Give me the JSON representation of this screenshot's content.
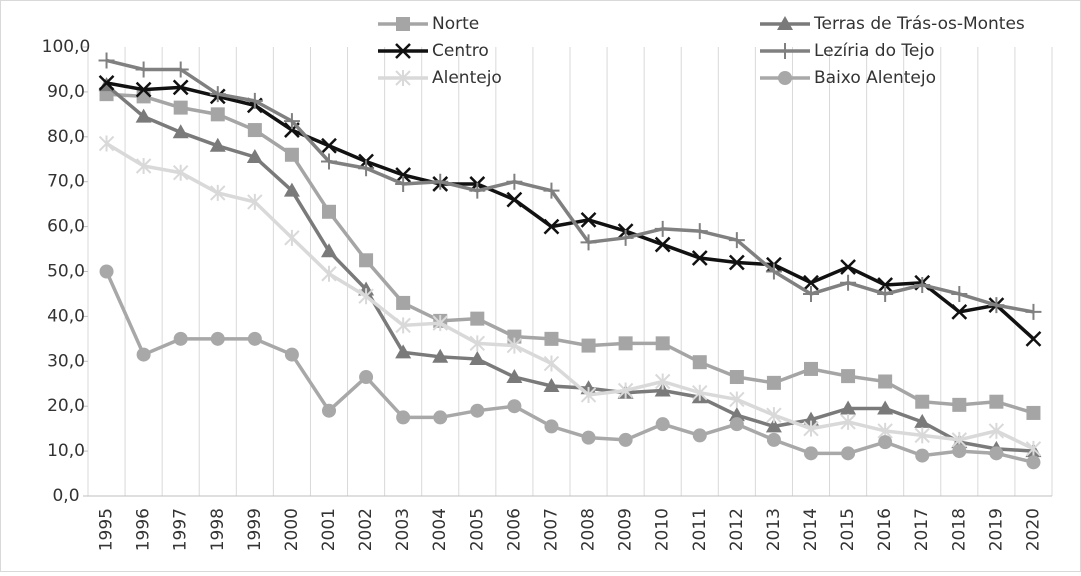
{
  "chart_data": {
    "type": "line",
    "categories": [
      "1995",
      "1996",
      "1997",
      "1998",
      "1999",
      "2000",
      "2001",
      "2002",
      "2003",
      "2004",
      "2005",
      "2006",
      "2007",
      "2008",
      "2009",
      "2010",
      "2011",
      "2012",
      "2013",
      "2014",
      "2015",
      "2016",
      "2017",
      "2018",
      "2019",
      "2020"
    ],
    "series": [
      {
        "name": "Norte",
        "color": "#a5a5a5",
        "marker": "square",
        "values": [
          89.5,
          89,
          86.5,
          85,
          81.5,
          76,
          63.3,
          52.5,
          43,
          39,
          39.5,
          35.5,
          35,
          33.5,
          34,
          34,
          29.8,
          26.5,
          25.2,
          28.3,
          26.7,
          25.5,
          21,
          20.3,
          21,
          18.5
        ]
      },
      {
        "name": "Terras de Trás-os-Montes",
        "color": "#7a7a7a",
        "marker": "triangle",
        "values": [
          91.5,
          84.5,
          81,
          78,
          75.5,
          68,
          54.5,
          46,
          32,
          31,
          30.5,
          26.5,
          24.5,
          24,
          23,
          23.5,
          22,
          18,
          15.5,
          17,
          19.5,
          19.5,
          16.5,
          12,
          10.5,
          10
        ]
      },
      {
        "name": "Centro",
        "color": "#111111",
        "marker": "x",
        "values": [
          92,
          90.5,
          91,
          89,
          87,
          81.5,
          78,
          74.5,
          71.5,
          69.5,
          69.5,
          66,
          60,
          61.5,
          59,
          56,
          53,
          52,
          51.5,
          47.5,
          51,
          47,
          47.5,
          41,
          42.5,
          35
        ]
      },
      {
        "name": "Lezíria do Tejo",
        "color": "#808080",
        "marker": "plus",
        "values": [
          97,
          95,
          95,
          89.5,
          88,
          83.5,
          74.5,
          73,
          69.5,
          70,
          68,
          70,
          68,
          56.5,
          57.5,
          59.5,
          59,
          57,
          50,
          45,
          47.5,
          45,
          47,
          45,
          42.5,
          41
        ]
      },
      {
        "name": "Alentejo",
        "color": "#d9d9d9",
        "marker": "star",
        "values": [
          78.5,
          73.5,
          72,
          67.5,
          65.5,
          57.5,
          49.5,
          44.5,
          38,
          38.5,
          34,
          33.5,
          29.5,
          22.5,
          23.5,
          25.5,
          23,
          21.5,
          18,
          15,
          16.5,
          14.5,
          13.5,
          12.5,
          14.5,
          10.5
        ]
      },
      {
        "name": "Baixo Alentejo",
        "color": "#a8a8a8",
        "marker": "circle",
        "values": [
          50,
          31.5,
          35,
          35,
          35,
          31.5,
          19,
          26.5,
          17.5,
          17.5,
          19,
          20,
          15.5,
          13,
          12.5,
          16,
          13.5,
          16,
          12.5,
          9.5,
          9.5,
          12,
          9,
          10,
          9.5,
          7.5
        ]
      }
    ],
    "ylim": [
      0,
      100
    ],
    "yticks": [
      {
        "value": 0,
        "label": "0,0"
      },
      {
        "value": 10,
        "label": "10,0"
      },
      {
        "value": 20,
        "label": "20,0"
      },
      {
        "value": 30,
        "label": "30,0"
      },
      {
        "value": 40,
        "label": "40,0"
      },
      {
        "value": 50,
        "label": "50,0"
      },
      {
        "value": 60,
        "label": "60,0"
      },
      {
        "value": 70,
        "label": "70,0"
      },
      {
        "value": 80,
        "label": "80,0"
      },
      {
        "value": 90,
        "label": "90,0"
      },
      {
        "value": 100,
        "label": "100,0"
      }
    ],
    "grid": "x"
  }
}
